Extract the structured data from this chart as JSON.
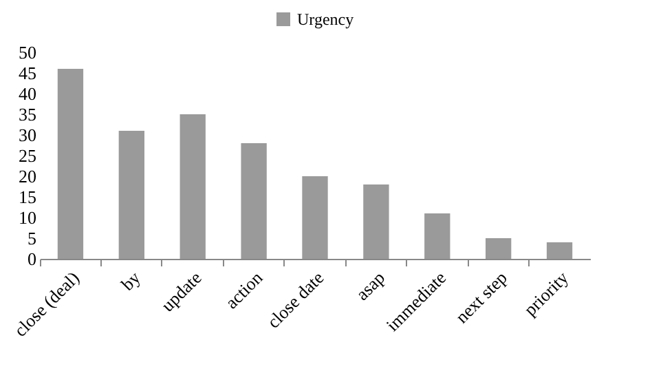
{
  "chart_data": {
    "type": "bar",
    "categories": [
      "close (deal)",
      "by",
      "update",
      "action",
      "close date",
      "asap",
      "immediate",
      "next step",
      "priority"
    ],
    "series": [
      {
        "name": "Urgency",
        "color": "#9a9a9a",
        "values": [
          46,
          31,
          35,
          28,
          20,
          18,
          11,
          5,
          4
        ]
      }
    ],
    "ylim": [
      0,
      50
    ],
    "yticks": [
      0,
      5,
      10,
      15,
      20,
      25,
      30,
      35,
      40,
      45,
      50
    ],
    "grid": false,
    "legend": "top"
  }
}
